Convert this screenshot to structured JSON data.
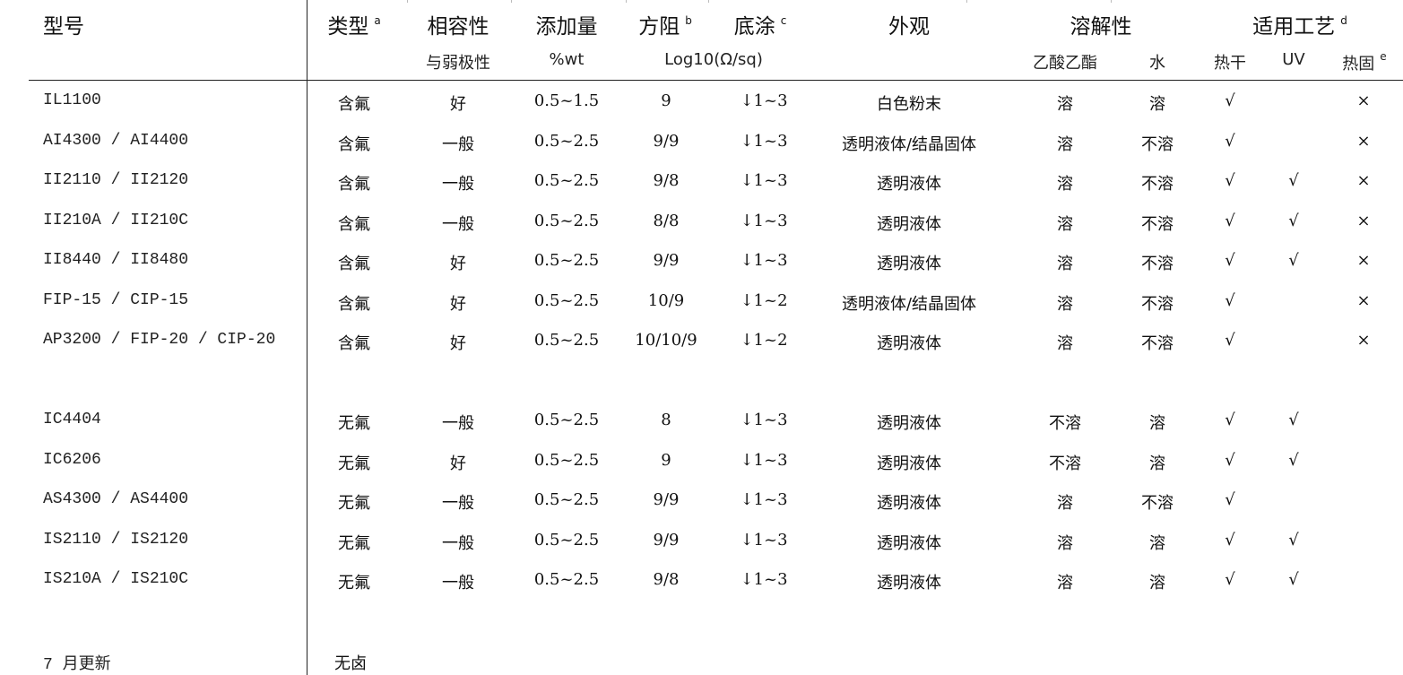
{
  "header": {
    "model": "型号",
    "type": "类型",
    "type_note": "a",
    "compat": "相容性",
    "compat_sub": "与弱极性",
    "addition": "添加量",
    "addition_sub": "%wt",
    "resistance": "方阻",
    "resistance_note": "b",
    "resistance_sub": "Log10(Ω/sq)",
    "base": "底涂",
    "base_note": "c",
    "appearance": "外观",
    "solubility": "溶解性",
    "sol_ea": "乙酸乙酯",
    "sol_water": "水",
    "process": "适用工艺",
    "process_note": "d",
    "proc_heatdry": "热干",
    "proc_uv": "UV",
    "proc_heatcure": "热固",
    "proc_heatcure_note": "e"
  },
  "rows": [
    {
      "model": "IL1100",
      "type": "含氟",
      "compat": "好",
      "addition": "0.5~1.5",
      "resistance": "9",
      "base": "↓1~3",
      "appearance": "白色粉末",
      "ea": "溶",
      "water": "溶",
      "heatdry": "√",
      "uv": "",
      "heatcure": "×"
    },
    {
      "model": "AI4300 / AI4400",
      "type": "含氟",
      "compat": "一般",
      "addition": "0.5~2.5",
      "resistance": "9/9",
      "base": "↓1~3",
      "appearance": "透明液体/结晶固体",
      "ea": "溶",
      "water": "不溶",
      "heatdry": "√",
      "uv": "",
      "heatcure": "×"
    },
    {
      "model": "II2110 / II2120",
      "type": "含氟",
      "compat": "一般",
      "addition": "0.5~2.5",
      "resistance": "9/8",
      "base": "↓1~3",
      "appearance": "透明液体",
      "ea": "溶",
      "water": "不溶",
      "heatdry": "√",
      "uv": "√",
      "heatcure": "×"
    },
    {
      "model": "II210A / II210C",
      "type": "含氟",
      "compat": "一般",
      "addition": "0.5~2.5",
      "resistance": "8/8",
      "base": "↓1~3",
      "appearance": "透明液体",
      "ea": "溶",
      "water": "不溶",
      "heatdry": "√",
      "uv": "√",
      "heatcure": "×"
    },
    {
      "model": "II8440 / II8480",
      "type": "含氟",
      "compat": "好",
      "addition": "0.5~2.5",
      "resistance": "9/9",
      "base": "↓1~3",
      "appearance": "透明液体",
      "ea": "溶",
      "water": "不溶",
      "heatdry": "√",
      "uv": "√",
      "heatcure": "×"
    },
    {
      "model": "FIP-15 / CIP-15",
      "type": "含氟",
      "compat": "好",
      "addition": "0.5~2.5",
      "resistance": "10/9",
      "base": "↓1~2",
      "appearance": "透明液体/结晶固体",
      "ea": "溶",
      "water": "不溶",
      "heatdry": "√",
      "uv": "",
      "heatcure": "×"
    },
    {
      "model": "AP3200 / FIP-20 / CIP-20",
      "type": "含氟",
      "compat": "好",
      "addition": "0.5~2.5",
      "resistance": "10/10/9",
      "base": "↓1~2",
      "appearance": "透明液体",
      "ea": "溶",
      "water": "不溶",
      "heatdry": "√",
      "uv": "",
      "heatcure": "×"
    },
    {
      "model": "IC4404",
      "type": "无氟",
      "compat": "一般",
      "addition": "0.5~2.5",
      "resistance": "8",
      "base": "↓1~3",
      "appearance": "透明液体",
      "ea": "不溶",
      "water": "溶",
      "heatdry": "√",
      "uv": "√",
      "heatcure": ""
    },
    {
      "model": "IC6206",
      "type": "无氟",
      "compat": "好",
      "addition": "0.5~2.5",
      "resistance": "9",
      "base": "↓1~3",
      "appearance": "透明液体",
      "ea": "不溶",
      "water": "溶",
      "heatdry": "√",
      "uv": "√",
      "heatcure": ""
    },
    {
      "model": "AS4300 / AS4400",
      "type": "无氟",
      "compat": "一般",
      "addition": "0.5~2.5",
      "resistance": "9/9",
      "base": "↓1~3",
      "appearance": "透明液体",
      "ea": "溶",
      "water": "不溶",
      "heatdry": "√",
      "uv": "",
      "heatcure": ""
    },
    {
      "model": "IS2110 / IS2120",
      "type": "无氟",
      "compat": "一般",
      "addition": "0.5~2.5",
      "resistance": "9/9",
      "base": "↓1~3",
      "appearance": "透明液体",
      "ea": "溶",
      "water": "溶",
      "heatdry": "√",
      "uv": "√",
      "heatcure": ""
    },
    {
      "model": "IS210A / IS210C",
      "type": "无氟",
      "compat": "一般",
      "addition": "0.5~2.5",
      "resistance": "9/8",
      "base": "↓1~3",
      "appearance": "透明液体",
      "ea": "溶",
      "water": "溶",
      "heatdry": "√",
      "uv": "√",
      "heatcure": ""
    }
  ],
  "footer": {
    "model": "7 月更新",
    "type": "无卤"
  }
}
